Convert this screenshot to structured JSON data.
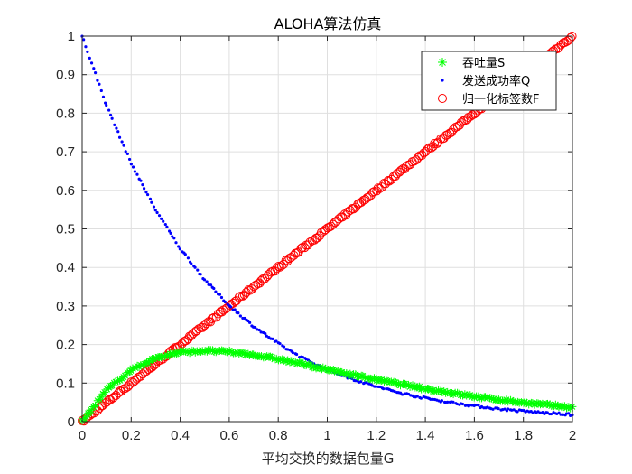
{
  "chart_data": {
    "type": "scatter",
    "title": "ALOHA算法仿真",
    "xlabel": "平均交换的数据包量G",
    "ylabel": "",
    "xlim": [
      0,
      2
    ],
    "ylim": [
      0,
      1
    ],
    "xticks": [
      "0",
      "0.2",
      "0.4",
      "0.6",
      "0.8",
      "1",
      "1.2",
      "1.4",
      "1.6",
      "1.8",
      "2"
    ],
    "yticks": [
      "0",
      "0.1",
      "0.2",
      "0.3",
      "0.4",
      "0.5",
      "0.6",
      "0.7",
      "0.8",
      "0.9",
      "1"
    ],
    "grid": true,
    "legend_position": "top-right",
    "series": [
      {
        "name": "吞吐量S",
        "marker": "asterisk",
        "color": "#00ff00",
        "x": [
          0,
          0.1,
          0.2,
          0.3,
          0.4,
          0.5,
          0.6,
          0.7,
          0.8,
          0.9,
          1.0,
          1.1,
          1.2,
          1.3,
          1.4,
          1.5,
          1.6,
          1.7,
          1.8,
          1.9,
          2.0
        ],
        "y": [
          0,
          0.082,
          0.134,
          0.165,
          0.18,
          0.184,
          0.181,
          0.173,
          0.162,
          0.149,
          0.135,
          0.122,
          0.109,
          0.097,
          0.085,
          0.075,
          0.065,
          0.057,
          0.049,
          0.043,
          0.037
        ]
      },
      {
        "name": "发送成功率Q",
        "marker": "dot",
        "color": "#0000ff",
        "x": [
          0,
          0.1,
          0.2,
          0.3,
          0.4,
          0.5,
          0.6,
          0.7,
          0.8,
          0.9,
          1.0,
          1.1,
          1.2,
          1.3,
          1.4,
          1.5,
          1.6,
          1.7,
          1.8,
          1.9,
          2.0
        ],
        "y": [
          1.0,
          0.819,
          0.67,
          0.549,
          0.449,
          0.368,
          0.301,
          0.247,
          0.202,
          0.165,
          0.135,
          0.111,
          0.091,
          0.074,
          0.061,
          0.05,
          0.041,
          0.033,
          0.027,
          0.022,
          0.018
        ]
      },
      {
        "name": "归一化标签数F",
        "marker": "circle",
        "color": "#ff0000",
        "x": [
          0,
          0.1,
          0.2,
          0.3,
          0.4,
          0.5,
          0.6,
          0.7,
          0.8,
          0.9,
          1.0,
          1.1,
          1.2,
          1.3,
          1.4,
          1.5,
          1.6,
          1.7,
          1.8,
          1.9,
          2.0
        ],
        "y": [
          0,
          0.05,
          0.1,
          0.15,
          0.2,
          0.25,
          0.3,
          0.35,
          0.4,
          0.45,
          0.5,
          0.55,
          0.6,
          0.65,
          0.7,
          0.75,
          0.8,
          0.85,
          0.9,
          0.95,
          1.0
        ]
      }
    ]
  }
}
